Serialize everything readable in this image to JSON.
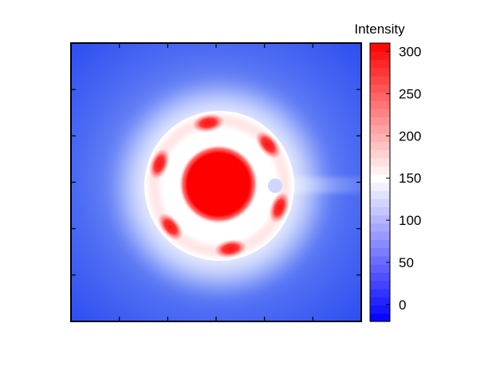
{
  "chart_data": {
    "type": "heatmap",
    "title": "",
    "xlabel": "",
    "ylabel": "",
    "colorbar": {
      "label": "Intensity",
      "range": [
        -20,
        310
      ],
      "ticks": [
        0,
        50,
        100,
        150,
        200,
        250,
        300
      ],
      "tick_labels": [
        "0",
        "50",
        "100",
        "150",
        "200",
        "250",
        "300"
      ],
      "colormap": [
        "#0000ff",
        "#ffffff",
        "#ff0000"
      ],
      "midpoint": 150
    },
    "pattern": {
      "description_type": "diffraction-like ring",
      "center_peak": 310,
      "ring_peaks": 6,
      "ring_peak_value": 300,
      "ring_base_value": 180,
      "background_value": 30,
      "streak_direction": "right"
    },
    "grid": false
  }
}
